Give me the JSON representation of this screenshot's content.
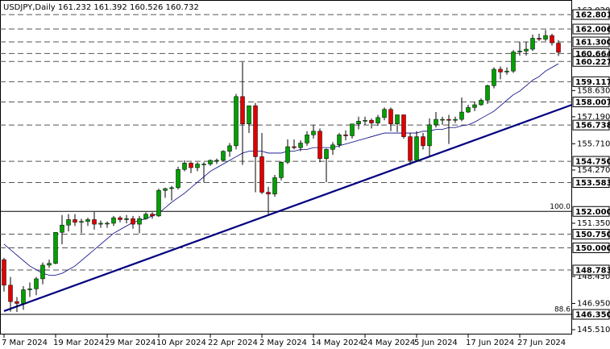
{
  "chart_data": {
    "type": "candlestick",
    "title": "USDJPY,Daily  161.232 161.392 160.526 160.732",
    "up_color": "#00a000",
    "down_color": "#e00000",
    "wick_color": "#000000",
    "ylim": [
      145.245,
      163.6
    ],
    "yticks": [
      {
        "value": 163.02,
        "label": "163.020"
      },
      {
        "value": 158.63,
        "label": "158.630"
      },
      {
        "value": 157.19,
        "label": "157.190"
      },
      {
        "value": 155.71,
        "label": "155.710"
      },
      {
        "value": 154.27,
        "label": "154.270"
      },
      {
        "value": 151.35,
        "label": "151.350"
      },
      {
        "value": 148.43,
        "label": "148.430"
      },
      {
        "value": 146.95,
        "label": "146.950"
      },
      {
        "value": 145.51,
        "label": "145.510"
      }
    ],
    "categories": [
      "7 Mar 2024",
      null,
      null,
      null,
      null,
      null,
      null,
      null,
      "19 Mar 2024",
      null,
      null,
      null,
      null,
      null,
      null,
      null,
      "29 Mar 2024",
      null,
      null,
      null,
      null,
      null,
      null,
      null,
      "10 Apr 2024",
      null,
      null,
      null,
      null,
      null,
      null,
      null,
      "22 Apr 2024",
      null,
      null,
      null,
      null,
      null,
      null,
      null,
      "2 May 2024",
      null,
      null,
      null,
      null,
      null,
      null,
      null,
      "14 May 2024",
      null,
      null,
      null,
      null,
      null,
      null,
      null,
      "24 May 2024",
      null,
      null,
      null,
      null,
      null,
      null,
      null,
      "5 Jun 2024",
      null,
      null,
      null,
      null,
      null,
      null,
      null,
      "17 Jun 2024",
      null,
      null,
      null,
      null,
      null,
      null,
      null,
      "27 Jun 2024",
      null,
      null,
      null,
      null,
      null,
      null
    ],
    "ohlc": [
      [
        149.35,
        149.45,
        147.6,
        147.95
      ],
      [
        147.95,
        148.4,
        146.5,
        147.05
      ],
      [
        147.05,
        147.3,
        146.48,
        146.95
      ],
      [
        146.95,
        147.9,
        146.6,
        147.7
      ],
      [
        147.7,
        148.1,
        147.3,
        147.75
      ],
      [
        147.75,
        148.4,
        147.4,
        148.3
      ],
      [
        148.3,
        149.2,
        148.0,
        149.05
      ],
      [
        149.05,
        149.35,
        148.9,
        149.15
      ],
      [
        149.15,
        150.85,
        149.1,
        150.85
      ],
      [
        150.85,
        151.8,
        150.2,
        151.25
      ],
      [
        151.25,
        151.85,
        150.9,
        151.55
      ],
      [
        151.55,
        151.85,
        151.2,
        151.4
      ],
      [
        151.4,
        151.6,
        150.8,
        151.45
      ],
      [
        151.45,
        151.65,
        151.2,
        151.55
      ],
      [
        151.55,
        151.97,
        151.0,
        151.3
      ],
      [
        151.3,
        151.5,
        151.1,
        151.35
      ],
      [
        151.35,
        151.45,
        151.1,
        151.35
      ],
      [
        151.35,
        151.75,
        151.2,
        151.65
      ],
      [
        151.65,
        151.75,
        151.4,
        151.55
      ],
      [
        151.55,
        151.8,
        151.35,
        151.6
      ],
      [
        151.6,
        151.75,
        151.05,
        151.3
      ],
      [
        151.3,
        151.75,
        150.8,
        151.6
      ],
      [
        151.6,
        151.95,
        151.55,
        151.85
      ],
      [
        151.85,
        151.95,
        151.6,
        151.75
      ],
      [
        151.75,
        153.25,
        151.7,
        153.15
      ],
      [
        153.15,
        153.3,
        152.75,
        153.25
      ],
      [
        153.25,
        153.4,
        152.6,
        153.3
      ],
      [
        153.3,
        154.45,
        153.2,
        154.3
      ],
      [
        154.3,
        154.8,
        154.2,
        154.65
      ],
      [
        154.65,
        154.7,
        154.1,
        154.4
      ],
      [
        154.4,
        154.7,
        154.2,
        154.6
      ],
      [
        154.6,
        154.7,
        153.6,
        154.6
      ],
      [
        154.6,
        154.85,
        154.5,
        154.8
      ],
      [
        154.8,
        154.9,
        154.6,
        154.8
      ],
      [
        154.8,
        155.35,
        154.75,
        155.3
      ],
      [
        155.3,
        155.75,
        155.0,
        155.6
      ],
      [
        155.6,
        158.45,
        155.4,
        158.3
      ],
      [
        158.3,
        160.2,
        154.55,
        156.8
      ],
      [
        156.8,
        157.8,
        156.3,
        157.8
      ],
      [
        157.8,
        157.95,
        153.05,
        155.0
      ],
      [
        155.0,
        156.3,
        152.95,
        153.05
      ],
      [
        153.05,
        153.35,
        151.85,
        152.95
      ],
      [
        152.95,
        154.0,
        152.8,
        153.85
      ],
      [
        153.85,
        154.75,
        153.7,
        154.7
      ],
      [
        154.7,
        155.95,
        154.6,
        155.55
      ],
      [
        155.55,
        155.95,
        155.4,
        155.5
      ],
      [
        155.5,
        155.9,
        155.3,
        155.75
      ],
      [
        155.75,
        156.4,
        155.6,
        156.2
      ],
      [
        156.2,
        156.75,
        156.0,
        156.4
      ],
      [
        156.4,
        156.55,
        154.7,
        154.9
      ],
      [
        154.9,
        155.45,
        153.6,
        155.4
      ],
      [
        155.4,
        155.8,
        155.1,
        155.65
      ],
      [
        155.65,
        156.3,
        155.5,
        156.2
      ],
      [
        156.2,
        156.45,
        155.9,
        156.15
      ],
      [
        156.15,
        156.8,
        156.0,
        156.8
      ],
      [
        156.8,
        157.2,
        156.5,
        156.95
      ],
      [
        156.95,
        157.2,
        156.75,
        157.0
      ],
      [
        157.0,
        157.1,
        156.55,
        156.85
      ],
      [
        156.85,
        157.3,
        156.7,
        157.15
      ],
      [
        157.15,
        157.7,
        157.0,
        157.6
      ],
      [
        157.6,
        157.7,
        156.4,
        156.8
      ],
      [
        156.8,
        157.3,
        156.35,
        157.3
      ],
      [
        157.3,
        157.3,
        156.0,
        156.1
      ],
      [
        156.1,
        156.3,
        154.55,
        154.8
      ],
      [
        154.8,
        156.4,
        154.75,
        156.1
      ],
      [
        156.1,
        156.3,
        155.4,
        155.6
      ],
      [
        155.6,
        157.1,
        155.0,
        156.75
      ],
      [
        156.75,
        157.45,
        156.6,
        157.05
      ],
      [
        157.05,
        157.2,
        156.75,
        157.05
      ],
      [
        157.05,
        157.3,
        155.7,
        157.0
      ],
      [
        157.0,
        157.2,
        156.85,
        157.05
      ],
      [
        157.05,
        158.25,
        156.95,
        157.45
      ],
      [
        157.45,
        157.85,
        157.4,
        157.7
      ],
      [
        157.7,
        158.0,
        157.5,
        157.85
      ],
      [
        157.85,
        158.2,
        157.8,
        158.1
      ],
      [
        158.1,
        158.95,
        157.9,
        158.9
      ],
      [
        158.9,
        159.9,
        158.75,
        159.8
      ],
      [
        159.8,
        159.95,
        159.25,
        159.65
      ],
      [
        159.65,
        159.9,
        159.5,
        159.7
      ],
      [
        159.7,
        160.85,
        159.6,
        160.75
      ],
      [
        160.75,
        161.3,
        160.55,
        160.8
      ],
      [
        160.8,
        161.3,
        160.55,
        160.9
      ],
      [
        160.9,
        161.7,
        160.8,
        161.5
      ],
      [
        161.5,
        161.75,
        161.35,
        161.45
      ],
      [
        161.45,
        161.95,
        161.35,
        161.65
      ],
      [
        161.65,
        161.75,
        161.1,
        161.25
      ],
      [
        161.232,
        161.392,
        160.526,
        160.732
      ]
    ],
    "ma": {
      "color": "#000080",
      "values": [
        150.2,
        149.9,
        149.6,
        149.3,
        149.0,
        148.8,
        148.6,
        148.5,
        148.5,
        148.6,
        148.8,
        149.0,
        149.3,
        149.6,
        149.9,
        150.2,
        150.5,
        150.8,
        151.0,
        151.2,
        151.4,
        151.5,
        151.6,
        151.75,
        151.9,
        152.2,
        152.5,
        152.75,
        153.0,
        153.3,
        153.6,
        153.9,
        154.2,
        154.4,
        154.6,
        154.8,
        155.0,
        155.2,
        155.3,
        155.3,
        155.3,
        155.2,
        155.2,
        155.2,
        155.3,
        155.3,
        155.4,
        155.4,
        155.5,
        155.5,
        155.5,
        155.5,
        155.6,
        155.7,
        155.8,
        155.9,
        156.0,
        156.1,
        156.2,
        156.3,
        156.3,
        156.3,
        156.3,
        156.3,
        156.3,
        156.4,
        156.4,
        156.5,
        156.5,
        156.6,
        156.6,
        156.7,
        156.75,
        156.9,
        157.1,
        157.3,
        157.5,
        157.8,
        158.1,
        158.4,
        158.6,
        158.9,
        159.2,
        159.4,
        159.7,
        159.9,
        160.1
      ]
    },
    "trendline": {
      "color": "#000080",
      "x": [
        0,
        88.1
      ],
      "y": [
        146.53,
        157.85
      ]
    },
    "levels": [
      {
        "value": 162.801
      },
      {
        "value": 162.006
      },
      {
        "value": 161.3,
        "label": "161.300"
      },
      {
        "value": 160.664
      },
      {
        "value": 160.227
      },
      {
        "value": 159.117
      },
      {
        "value": 158.007
      },
      {
        "value": 156.738
      },
      {
        "value": 154.75,
        "label": "154.750"
      },
      {
        "value": 153.583
      },
      {
        "value": 152,
        "label": "152.000",
        "fib": "100.0",
        "solid": true
      },
      {
        "value": 150.75,
        "label": "150.750"
      },
      {
        "value": 150,
        "label": "150.000"
      },
      {
        "value": 148.783
      },
      {
        "value": 146.35,
        "label": "146.350",
        "fib": "88.6",
        "solid": true
      }
    ]
  }
}
